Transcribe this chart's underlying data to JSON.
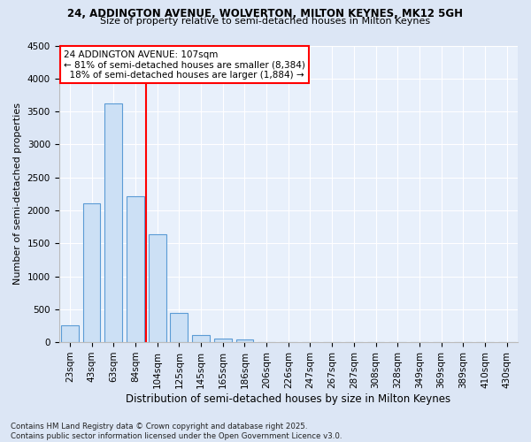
{
  "title_line1": "24, ADDINGTON AVENUE, WOLVERTON, MILTON KEYNES, MK12 5GH",
  "title_line2": "Size of property relative to semi-detached houses in Milton Keynes",
  "xlabel": "Distribution of semi-detached houses by size in Milton Keynes",
  "ylabel": "Number of semi-detached properties",
  "categories": [
    "23sqm",
    "43sqm",
    "63sqm",
    "84sqm",
    "104sqm",
    "125sqm",
    "145sqm",
    "165sqm",
    "186sqm",
    "206sqm",
    "226sqm",
    "247sqm",
    "267sqm",
    "287sqm",
    "308sqm",
    "328sqm",
    "349sqm",
    "369sqm",
    "389sqm",
    "410sqm",
    "430sqm"
  ],
  "values": [
    250,
    2100,
    3620,
    2210,
    1640,
    440,
    105,
    55,
    35,
    0,
    0,
    0,
    0,
    0,
    0,
    0,
    0,
    0,
    0,
    0,
    0
  ],
  "bar_color": "#cce0f5",
  "bar_edge_color": "#5b9bd5",
  "annotation_text": "24 ADDINGTON AVENUE: 107sqm\n← 81% of semi-detached houses are smaller (8,384)\n  18% of semi-detached houses are larger (1,884) →",
  "ylim": [
    0,
    4500
  ],
  "yticks": [
    0,
    500,
    1000,
    1500,
    2000,
    2500,
    3000,
    3500,
    4000,
    4500
  ],
  "footer_line1": "Contains HM Land Registry data © Crown copyright and database right 2025.",
  "footer_line2": "Contains public sector information licensed under the Open Government Licence v3.0.",
  "bg_color": "#dce6f5",
  "plot_bg_color": "#e8f0fb",
  "red_line_idx": 3.5,
  "title1_fontsize": 8.5,
  "title2_fontsize": 8.0,
  "xlabel_fontsize": 8.5,
  "ylabel_fontsize": 8.0,
  "tick_fontsize": 7.5,
  "annot_fontsize": 7.5,
  "footer_fontsize": 6.2
}
